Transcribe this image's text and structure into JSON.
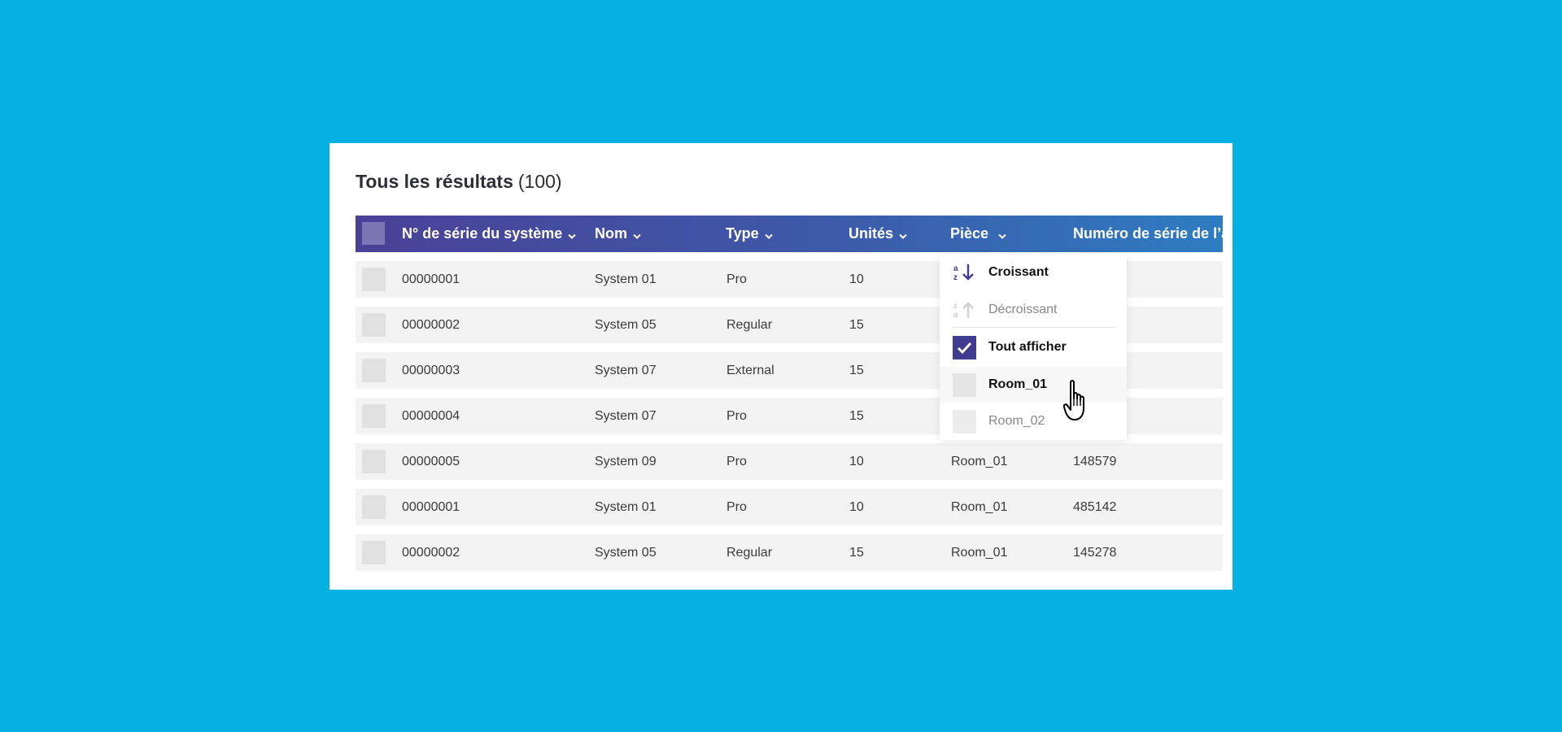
{
  "header": {
    "title": "Tous les résultats",
    "count": "(100)"
  },
  "columns": [
    {
      "label": "N° de série du système"
    },
    {
      "label": "Nom"
    },
    {
      "label": "Type"
    },
    {
      "label": "Unités"
    },
    {
      "label": "Pièce"
    },
    {
      "label": "Numéro de série de l’a"
    }
  ],
  "rows": [
    {
      "serial": "00000001",
      "name": "System 01",
      "type": "Pro",
      "units": "10",
      "room": "",
      "number": ""
    },
    {
      "serial": "00000002",
      "name": "System 05",
      "type": "Regular",
      "units": "15",
      "room": "",
      "number": ""
    },
    {
      "serial": "00000003",
      "name": "System 07",
      "type": "External",
      "units": "15",
      "room": "",
      "number": ""
    },
    {
      "serial": "00000004",
      "name": "System 07",
      "type": "Pro",
      "units": "15",
      "room": "",
      "number": ""
    },
    {
      "serial": "00000005",
      "name": "System 09",
      "type": "Pro",
      "units": "10",
      "room": "Room_01",
      "number": "148579"
    },
    {
      "serial": "00000001",
      "name": "System 01",
      "type": "Pro",
      "units": "10",
      "room": "Room_01",
      "number": "485142"
    },
    {
      "serial": "00000002",
      "name": "System 05",
      "type": "Regular",
      "units": "15",
      "room": "Room_01",
      "number": "145278"
    }
  ],
  "dropdown": {
    "sort_asc": "Croissant",
    "sort_desc": "Décroissant",
    "show_all": "Tout afficher",
    "show_all_checked": true,
    "options": [
      {
        "label": "Room_01",
        "checked": false
      },
      {
        "label": "Room_02",
        "checked": false
      }
    ],
    "icons": {
      "asc": "sort-ascending-icon",
      "desc": "sort-descending-icon",
      "cursor": "hand-pointer-icon"
    }
  },
  "colors": {
    "background": "#04b1e2",
    "header_start": "#4a4197",
    "header_end": "#2e7cc2",
    "accent": "#3f3b8f"
  }
}
